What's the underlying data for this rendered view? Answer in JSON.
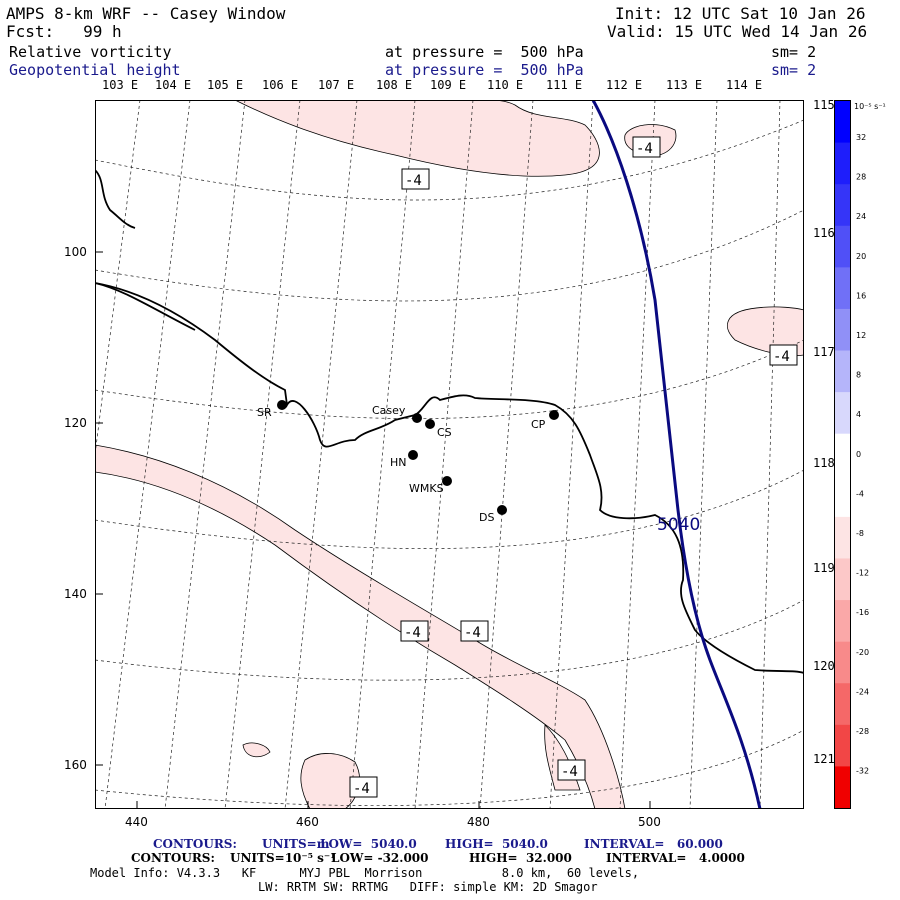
{
  "header": {
    "title": "AMPS 8-km WRF -- Casey Window",
    "init": "Init: 12 UTC Sat 10 Jan 26",
    "fcst": "Fcst:   99 h",
    "valid": "Valid: 15 UTC Wed 14 Jan 26",
    "fields": [
      {
        "name": "Relative vorticity",
        "level": "at pressure =  500 hPa",
        "sm": "sm= 2"
      },
      {
        "name": "Geopotential height",
        "level": "at pressure =  500 hPa",
        "sm": "sm= 2"
      }
    ]
  },
  "map": {
    "top_lon_labels": [
      "103 E",
      "104 E",
      "105 E",
      "106 E",
      "107 E",
      "108 E",
      "109 E",
      "110 E",
      "111 E",
      "112 E",
      "113 E",
      "114 E"
    ],
    "right_lon_labels": [
      "115 E",
      "116 E",
      "117 E",
      "118 E",
      "119 E",
      "120 E",
      "121 E"
    ],
    "x_ticks": [
      "440",
      "460",
      "480",
      "500"
    ],
    "y_ticks": [
      "100",
      "120",
      "140",
      "160"
    ],
    "stations": [
      {
        "name": "SR"
      },
      {
        "name": "Casey"
      },
      {
        "name": "CS"
      },
      {
        "name": "CP"
      },
      {
        "name": "HN"
      },
      {
        "name": "WMKS"
      },
      {
        "name": "DS"
      }
    ],
    "vort_contour_label": "-4",
    "height_contour_label": "5040",
    "colors": {
      "negative_fill": "#fde4e4",
      "height_line": "#0a0a80",
      "coast": "#000000"
    }
  },
  "colorbar": {
    "units": "10⁻⁵ s⁻¹",
    "labels": [
      "32",
      "28",
      "24",
      "20",
      "16",
      "12",
      "8",
      "4",
      "0",
      "-4",
      "-8",
      "-12",
      "-16",
      "-20",
      "-24",
      "-28",
      "-32"
    ],
    "colors": [
      "#0000ff",
      "#1e1efb",
      "#3535f8",
      "#5050f7",
      "#7070f7",
      "#9090f7",
      "#b5b5fa",
      "#d8d8fc",
      "#ffffff",
      "#ffffff",
      "#fde4e4",
      "#fcc8c8",
      "#faa8a8",
      "#f88a8a",
      "#f56868",
      "#f24646",
      "#f00000"
    ]
  },
  "footer": {
    "line1": {
      "contours": "CONTOURS:",
      "units": "UNITS=m",
      "low": "LOW=  5040.0",
      "high": "HIGH=  5040.0",
      "interval": "INTERVAL=   60.000"
    },
    "line2": {
      "contours": "CONTOURS:",
      "units": "UNITS=10⁻⁵ s⁻¹",
      "low": "LOW= -32.000",
      "high": "HIGH=  32.000",
      "interval": "INTERVAL=   4.0000"
    },
    "line3": "Model Info: V4.3.3   KF      MYJ PBL  Morrison           8.0 km,  60 levels,",
    "line4": "LW: RRTM SW: RRTMG   DIFF: simple KM: 2D Smagor"
  }
}
